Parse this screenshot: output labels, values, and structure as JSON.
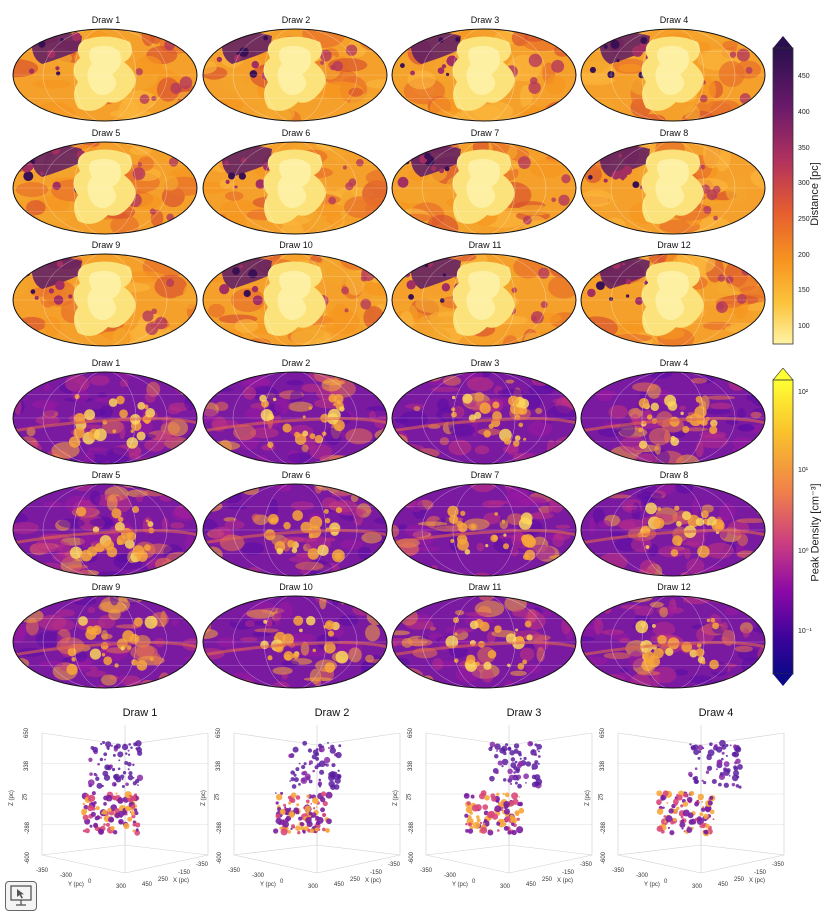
{
  "distance_maps": {
    "titles": [
      "Draw 1",
      "Draw 2",
      "Draw 3",
      "Draw 4",
      "Draw 5",
      "Draw 6",
      "Draw 7",
      "Draw 8",
      "Draw 9",
      "Draw 10",
      "Draw 11",
      "Draw 12"
    ]
  },
  "density_maps": {
    "titles": [
      "Draw 1",
      "Draw 2",
      "Draw 3",
      "Draw 4",
      "Draw 5",
      "Draw 6",
      "Draw 7",
      "Draw 8",
      "Draw 9",
      "Draw 10",
      "Draw 11",
      "Draw 12"
    ]
  },
  "colorbar_distance": {
    "label": "Distance [pc]",
    "ticks": [
      "450",
      "400",
      "350",
      "300",
      "250",
      "200",
      "150",
      "100"
    ],
    "colors": [
      "#2a0f4e",
      "#6a1a6a",
      "#b1325e",
      "#e55c30",
      "#f79520",
      "#fbc33a",
      "#fff3a6"
    ]
  },
  "colorbar_density": {
    "label": "Peak Density [cm⁻³]",
    "ticks": [
      "10²",
      "10¹",
      "10⁰",
      "10⁻¹"
    ],
    "colors": [
      "#ffff33",
      "#f9c12c",
      "#f0804a",
      "#c93c82",
      "#8a09a6",
      "#3b049a",
      "#0d0887"
    ]
  },
  "cubes": {
    "titles": [
      "Draw 1",
      "Draw 2",
      "Draw 3",
      "Draw 4"
    ],
    "z_label": "Z (pc)",
    "y_label": "Y (pc)",
    "x_label": "X (pc)",
    "z_ticks": [
      "650",
      "338",
      "25",
      "-288",
      "-600"
    ],
    "y_ticks": [
      "-350",
      "-300",
      "0",
      "300"
    ],
    "x_ticks": [
      "450",
      "250",
      "-150",
      "-350"
    ]
  }
}
